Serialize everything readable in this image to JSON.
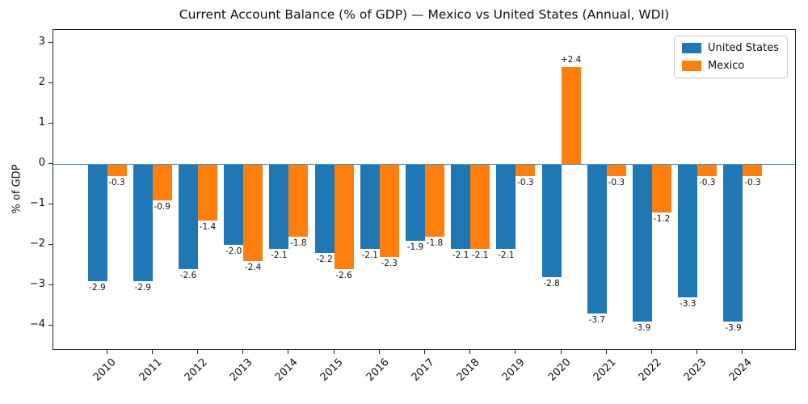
{
  "chart_data": {
    "type": "bar",
    "title": "Current Account Balance (% of GDP) — Mexico vs United States (Annual, WDI)",
    "xlabel": "",
    "ylabel": "% of GDP",
    "categories": [
      "2010",
      "2011",
      "2012",
      "2013",
      "2014",
      "2015",
      "2016",
      "2017",
      "2018",
      "2019",
      "2020",
      "2021",
      "2022",
      "2023",
      "2024"
    ],
    "series": [
      {
        "name": "United States",
        "slug": "united-states",
        "color": "#1f77b4",
        "values": [
          -2.9,
          -2.9,
          -2.6,
          -2.0,
          -2.1,
          -2.2,
          -2.1,
          -1.9,
          -2.1,
          -2.1,
          -2.8,
          -3.7,
          -3.9,
          -3.3,
          -3.9
        ],
        "labels": [
          "-2.9",
          "-2.9",
          "-2.6",
          "-2.0",
          "-2.1",
          "-2.2",
          "-2.1",
          "-1.9",
          "-2.1",
          "-2.1",
          "-2.8",
          "-3.7",
          "-3.9",
          "-3.3",
          "-3.9"
        ]
      },
      {
        "name": "Mexico",
        "slug": "mexico",
        "color": "#ff7f0e",
        "values": [
          -0.3,
          -0.9,
          -1.4,
          -2.4,
          -1.8,
          -2.6,
          -2.3,
          -1.8,
          -2.1,
          -0.3,
          2.4,
          -0.3,
          -1.2,
          -0.3,
          -0.3
        ],
        "labels": [
          "-0.3",
          "-0.9",
          "-1.4",
          "-2.4",
          "-1.8",
          "-2.6",
          "-2.3",
          "-1.8",
          "-2.1",
          "-0.3",
          "+2.4",
          "-0.3",
          "-1.2",
          "-0.3",
          "-0.3"
        ]
      }
    ],
    "yticks": {
      "values": [
        3,
        2,
        1,
        0,
        -1,
        -2,
        -3,
        -4
      ],
      "labels": [
        "3",
        "2",
        "1",
        "0",
        "−1",
        "−2",
        "−3",
        "−4"
      ]
    },
    "ylim": [
      -4.6,
      3.34
    ],
    "grid": false,
    "legend": {
      "position": "upper right",
      "entries": [
        "United States",
        "Mexico"
      ]
    },
    "zero_line": {
      "y": 0,
      "color": "#4e96d1"
    }
  }
}
